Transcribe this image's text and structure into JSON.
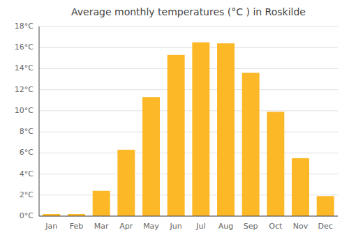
{
  "chart_data": {
    "type": "bar",
    "title": "Average monthly temperatures (°C ) in Roskilde",
    "categories": [
      "Jan",
      "Feb",
      "Mar",
      "Apr",
      "May",
      "Jun",
      "Jul",
      "Aug",
      "Sep",
      "Oct",
      "Nov",
      "Dec"
    ],
    "values": [
      0.2,
      0.2,
      2.4,
      6.3,
      11.3,
      15.3,
      16.5,
      16.4,
      13.6,
      9.9,
      5.5,
      1.9
    ],
    "color": "#FDB827",
    "ylim": [
      0,
      18
    ],
    "yticks": [
      {
        "value": 0,
        "label": "0°C"
      },
      {
        "value": 2,
        "label": "2°C"
      },
      {
        "value": 4,
        "label": "4°C"
      },
      {
        "value": 6,
        "label": "6°C"
      },
      {
        "value": 8,
        "label": "8°C"
      },
      {
        "value": 10,
        "label": "10°C"
      },
      {
        "value": 12,
        "label": "12°C"
      },
      {
        "value": 14,
        "label": "14°C"
      },
      {
        "value": 16,
        "label": "16°C"
      },
      {
        "value": 18,
        "label": "18°C"
      }
    ],
    "grid": true
  }
}
